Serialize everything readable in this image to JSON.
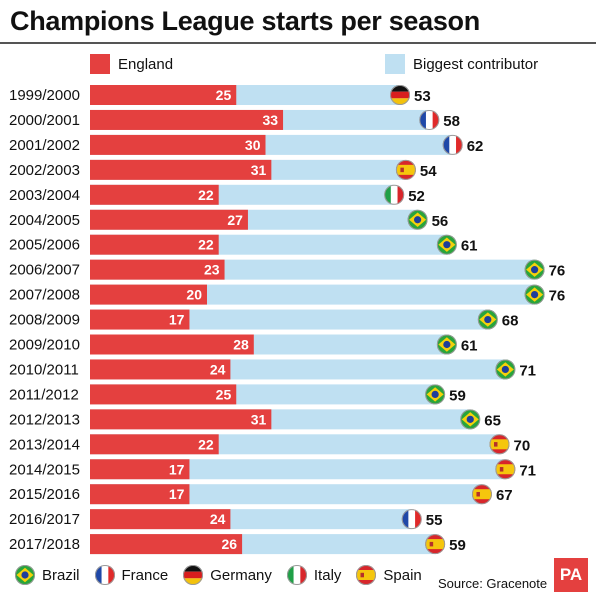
{
  "title": "Champions League starts per season",
  "legend": {
    "england": "England",
    "biggest": "Biggest contributor"
  },
  "colors": {
    "england": "#e4403f",
    "biggest": "#bfe0f2",
    "brazil_green": "#29a43c",
    "brazil_yellow": "#f6d10b",
    "france_blue": "#1f48a8",
    "france_red": "#e02a2a",
    "germany_black": "#111111",
    "germany_red": "#d81e1e",
    "germany_gold": "#f3c20c",
    "italy_green": "#20a047",
    "italy_red": "#d8262b",
    "spain_red": "#d7262b",
    "spain_yellow": "#f5c60d"
  },
  "chart_data": {
    "type": "bar",
    "title": "Champions League starts per season",
    "categories": [
      "1999/2000",
      "2000/2001",
      "2001/2002",
      "2002/2003",
      "2003/2004",
      "2004/2005",
      "2005/2006",
      "2006/2007",
      "2007/2008",
      "2008/2009",
      "2009/2010",
      "2010/2011",
      "2011/2012",
      "2012/2013",
      "2013/2014",
      "2014/2015",
      "2015/2016",
      "2016/2017",
      "2017/2018"
    ],
    "series": [
      {
        "name": "England",
        "values": [
          25,
          33,
          30,
          31,
          22,
          27,
          22,
          23,
          20,
          17,
          28,
          24,
          25,
          31,
          22,
          17,
          17,
          24,
          26
        ]
      },
      {
        "name": "Biggest contributor",
        "values": [
          53,
          58,
          62,
          54,
          52,
          56,
          61,
          76,
          76,
          68,
          61,
          71,
          59,
          65,
          70,
          71,
          67,
          55,
          59
        ]
      }
    ],
    "contributor_country": [
      "germany",
      "france",
      "france",
      "spain",
      "italy",
      "brazil",
      "brazil",
      "brazil",
      "brazil",
      "brazil",
      "brazil",
      "brazil",
      "brazil",
      "brazil",
      "spain",
      "spain",
      "spain",
      "france",
      "spain"
    ]
  },
  "country_legend": [
    {
      "key": "brazil",
      "label": "Brazil"
    },
    {
      "key": "france",
      "label": "France"
    },
    {
      "key": "germany",
      "label": "Germany"
    },
    {
      "key": "italy",
      "label": "Italy"
    },
    {
      "key": "spain",
      "label": "Spain"
    }
  ],
  "source": "Source: Gracenote",
  "logo": "PA"
}
